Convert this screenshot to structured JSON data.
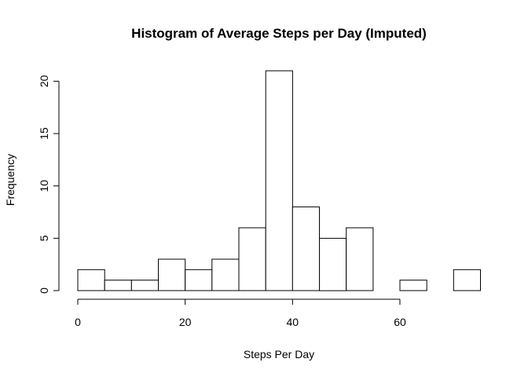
{
  "chart_data": {
    "type": "bar",
    "title": "Histogram of Average Steps per Day (Imputed)",
    "xlabel": "Steps Per Day",
    "ylabel": "Frequency",
    "bin_width": 5,
    "bins": [
      {
        "start": 0,
        "end": 5,
        "count": 2
      },
      {
        "start": 5,
        "end": 10,
        "count": 1
      },
      {
        "start": 10,
        "end": 15,
        "count": 1
      },
      {
        "start": 15,
        "end": 20,
        "count": 3
      },
      {
        "start": 20,
        "end": 25,
        "count": 2
      },
      {
        "start": 25,
        "end": 30,
        "count": 3
      },
      {
        "start": 30,
        "end": 35,
        "count": 6
      },
      {
        "start": 35,
        "end": 40,
        "count": 21
      },
      {
        "start": 40,
        "end": 45,
        "count": 8
      },
      {
        "start": 45,
        "end": 50,
        "count": 5
      },
      {
        "start": 50,
        "end": 55,
        "count": 6
      },
      {
        "start": 55,
        "end": 60,
        "count": 0
      },
      {
        "start": 60,
        "end": 65,
        "count": 1
      },
      {
        "start": 65,
        "end": 70,
        "count": 0
      },
      {
        "start": 70,
        "end": 75,
        "count": 2
      }
    ],
    "x_ticks": [
      0,
      20,
      40,
      60
    ],
    "y_ticks": [
      0,
      5,
      10,
      15,
      20
    ],
    "xlim": [
      0,
      60
    ],
    "ylim": [
      0,
      20
    ],
    "grid": false,
    "bar_fill": "#ffffff",
    "bar_stroke": "#000000"
  }
}
